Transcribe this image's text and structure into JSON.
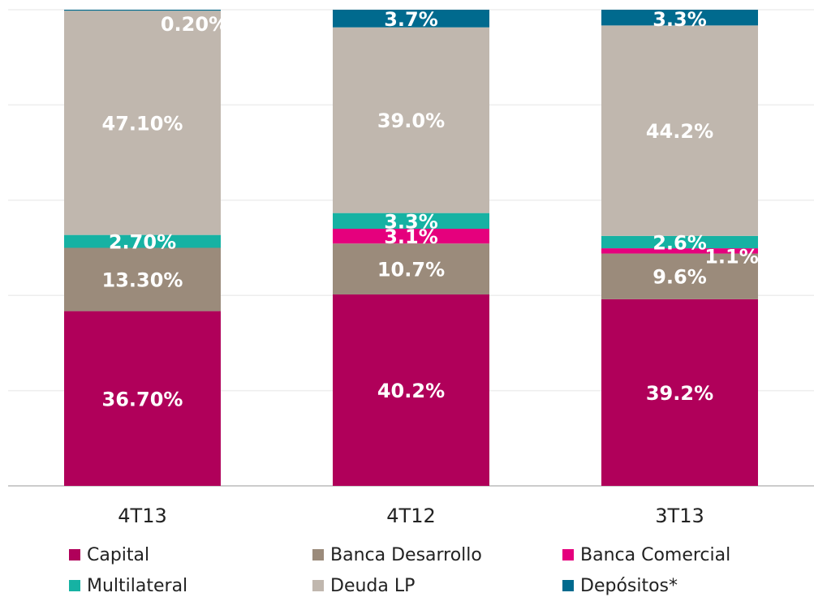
{
  "chart_data": {
    "type": "stacked_bar",
    "categories": [
      "4T13",
      "4T12",
      "3T13"
    ],
    "series": [
      {
        "name": "Capital",
        "color": "#b0005a",
        "values": [
          36.7,
          40.2,
          39.2
        ],
        "value_labels": [
          "36.70%",
          "40.2%",
          "39.2%"
        ]
      },
      {
        "name": "Banca Desarrollo",
        "color": "#9b8b7b",
        "values": [
          13.3,
          10.7,
          9.6
        ],
        "value_labels": [
          "13.30%",
          "10.7%",
          "9.6%"
        ]
      },
      {
        "name": "Banca Comercial",
        "color": "#e5007d",
        "values": [
          null,
          3.1,
          1.1
        ],
        "value_labels": [
          null,
          "3.1%",
          "1.1%"
        ]
      },
      {
        "name": "Multilateral",
        "color": "#16b2a3",
        "values": [
          2.7,
          3.3,
          2.6
        ],
        "value_labels": [
          "2.70%",
          "3.3%",
          "2.6%"
        ]
      },
      {
        "name": "Deuda LP",
        "color": "#c0b7ae",
        "values": [
          47.1,
          39.0,
          44.2
        ],
        "value_labels": [
          "47.10%",
          "39.0%",
          "44.2%"
        ]
      },
      {
        "name": "Depósitos*",
        "color": "#006a8e",
        "values": [
          0.2,
          3.7,
          3.3
        ],
        "value_labels": [
          "0.20%",
          "3.7%",
          "3.3%"
        ]
      }
    ],
    "ylim": [
      0,
      100
    ],
    "yticks": [
      0,
      20,
      40,
      60,
      80,
      100
    ],
    "grid": true,
    "legend": "bottom"
  }
}
